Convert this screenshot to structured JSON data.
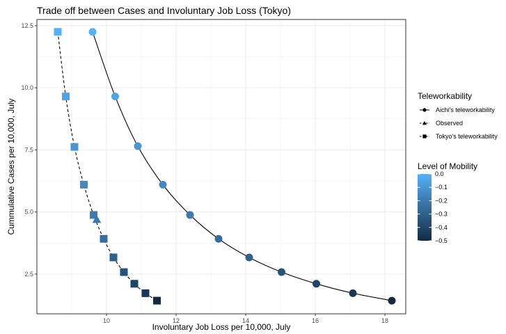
{
  "chart_data": {
    "type": "scatter",
    "title": "Trade off between Cases and Involuntary Job Loss (Tokyo)",
    "xlabel": "Involuntary Job Loss per 10,000, July",
    "ylabel": "Cummulative Cases per 10,000, July",
    "xlim": [
      8.0,
      18.6
    ],
    "ylim": [
      0.9,
      12.75
    ],
    "xticks": [
      10,
      12,
      14,
      16,
      18
    ],
    "xtick_labels": [
      "10",
      "12",
      "14",
      "16",
      "18"
    ],
    "yticks": [
      2.5,
      5.0,
      7.5,
      10.0,
      12.5
    ],
    "ytick_labels": [
      "2.5",
      "5.0",
      "7.5",
      "10.0",
      "12.5"
    ],
    "grid": true,
    "legend_position": "right",
    "series": [
      {
        "name": "Aichi's teleworkability",
        "marker": "circle",
        "linetype": "solid",
        "points": [
          {
            "x": 9.6,
            "y": 12.25,
            "mobility": 0.0
          },
          {
            "x": 10.25,
            "y": 9.65,
            "mobility": -0.05
          },
          {
            "x": 10.9,
            "y": 7.65,
            "mobility": -0.1
          },
          {
            "x": 11.62,
            "y": 6.1,
            "mobility": -0.15
          },
          {
            "x": 12.4,
            "y": 4.88,
            "mobility": -0.2
          },
          {
            "x": 13.22,
            "y": 3.92,
            "mobility": -0.25
          },
          {
            "x": 14.1,
            "y": 3.17,
            "mobility": -0.3
          },
          {
            "x": 15.03,
            "y": 2.58,
            "mobility": -0.35
          },
          {
            "x": 16.03,
            "y": 2.11,
            "mobility": -0.4
          },
          {
            "x": 17.08,
            "y": 1.73,
            "mobility": -0.45
          },
          {
            "x": 18.2,
            "y": 1.43,
            "mobility": -0.5
          }
        ]
      },
      {
        "name": "Observed",
        "marker": "triangle",
        "linetype": "dashed",
        "points": [
          {
            "x": 9.72,
            "y": 4.7,
            "mobility": -0.21
          }
        ]
      },
      {
        "name": "Tokyo's teleworkability",
        "marker": "square",
        "linetype": "dashed",
        "points": [
          {
            "x": 8.6,
            "y": 12.25,
            "mobility": 0.0
          },
          {
            "x": 8.83,
            "y": 9.65,
            "mobility": -0.05
          },
          {
            "x": 9.08,
            "y": 7.62,
            "mobility": -0.1
          },
          {
            "x": 9.35,
            "y": 6.1,
            "mobility": -0.15
          },
          {
            "x": 9.63,
            "y": 4.88,
            "mobility": -0.2
          },
          {
            "x": 9.92,
            "y": 3.92,
            "mobility": -0.25
          },
          {
            "x": 10.2,
            "y": 3.17,
            "mobility": -0.3
          },
          {
            "x": 10.5,
            "y": 2.58,
            "mobility": -0.35
          },
          {
            "x": 10.8,
            "y": 2.11,
            "mobility": -0.4
          },
          {
            "x": 11.12,
            "y": 1.73,
            "mobility": -0.45
          },
          {
            "x": 11.45,
            "y": 1.43,
            "mobility": -0.5
          }
        ]
      }
    ],
    "legend_shape": {
      "title": "Teleworkability",
      "entries": [
        "Aichi's teleworkability",
        "Observed",
        "Tokyo's teleworkability"
      ]
    },
    "legend_color": {
      "title": "Level of Mobility",
      "range": [
        -0.5,
        0.0
      ],
      "ticks": [
        0.0,
        -0.1,
        -0.2,
        -0.3,
        -0.4,
        -0.5
      ],
      "tick_labels": [
        "0.0",
        "−0.1",
        "−0.2",
        "−0.3",
        "−0.4",
        "−0.5"
      ],
      "color_low": "#132b43",
      "color_high": "#56b1f7"
    },
    "colors": {
      "panel_background": "#ffffff",
      "panel_border": "#333333",
      "grid_major": "#ebebeb",
      "line": "#000000"
    }
  }
}
